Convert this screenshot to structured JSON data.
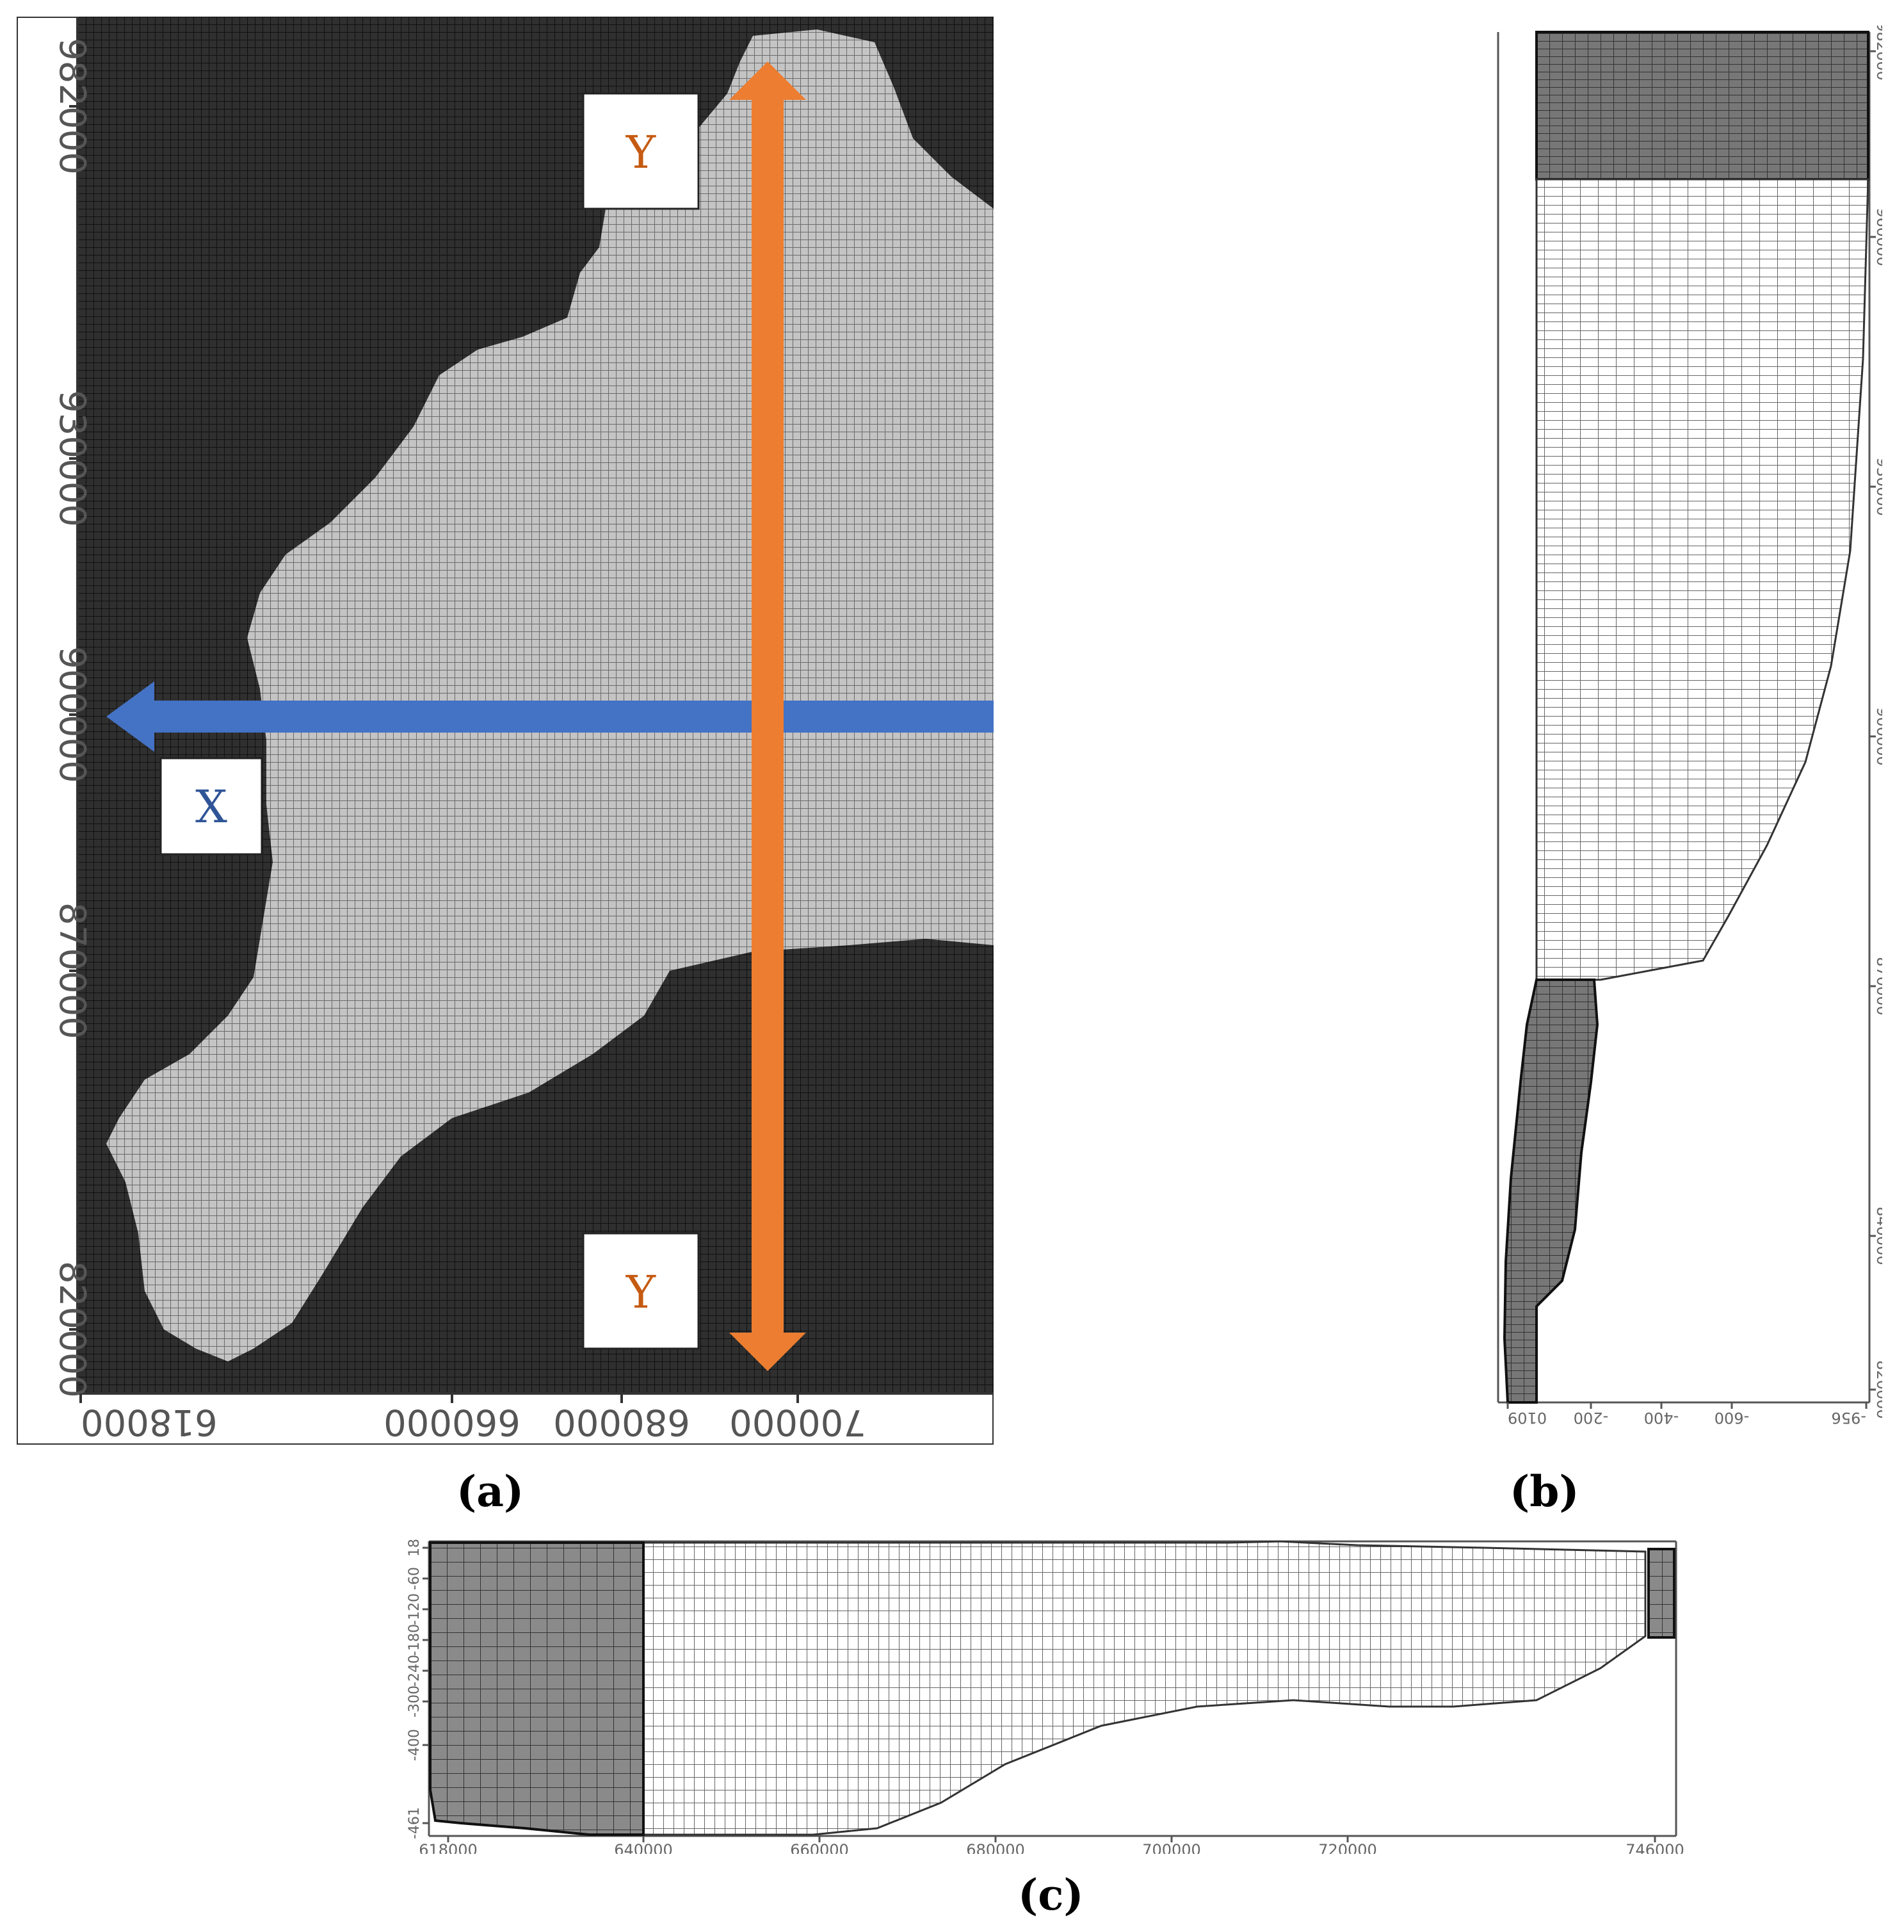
{
  "panel_a": {
    "label": "(a)",
    "y_ticks": [
      "982000",
      "930000",
      "900000",
      "870000",
      "820000"
    ],
    "x_ticks": [
      "618000",
      "660000",
      "680000",
      "700000"
    ],
    "x_marker": "X",
    "y_marker_top": "Y",
    "y_marker_bottom": "Y",
    "colors": {
      "sea": "#2f2f2f",
      "land": "#b5b5b5",
      "x_arrow": "#4472c4",
      "y_arrow": "#ed7d31",
      "x_text": "#2f5597",
      "y_text": "#c55a11"
    }
  },
  "panel_b": {
    "label": "(b)",
    "y_ticks": [
      "982000",
      "960000",
      "930000",
      "900000",
      "870000",
      "840000",
      "820000"
    ],
    "depth_ticks": [
      "0109",
      "-200",
      "-400",
      "-600",
      "-956"
    ]
  },
  "panel_c": {
    "label": "(c)",
    "depth_ticks": [
      "18",
      "-60",
      "-120",
      "-180",
      "-240",
      "-300",
      "-400",
      "-461"
    ],
    "x_ticks": [
      "618000",
      "640000",
      "660000",
      "680000",
      "700000",
      "720000",
      "746000"
    ]
  }
}
